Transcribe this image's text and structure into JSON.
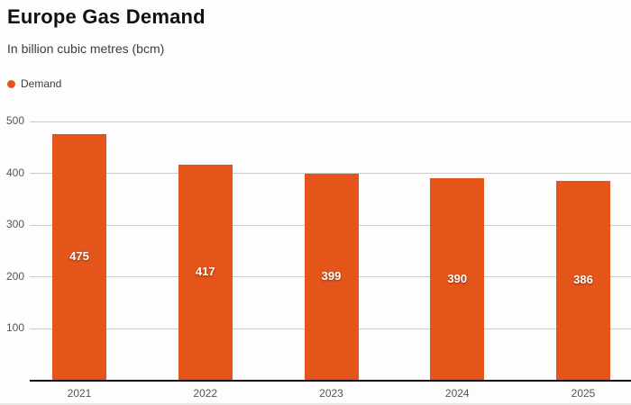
{
  "header": {
    "title": "Europe Gas Demand",
    "subtitle": "In billion cubic metres (bcm)"
  },
  "legend": {
    "items": [
      {
        "label": "Demand",
        "color": "#e4551a"
      }
    ]
  },
  "chart_data": {
    "type": "bar",
    "categories": [
      "2021",
      "2022",
      "2023",
      "2024",
      "2025"
    ],
    "series": [
      {
        "name": "Demand",
        "values": [
          475,
          417,
          399,
          390,
          386
        ]
      }
    ],
    "value_labels": [
      "475",
      "417",
      "399",
      "390",
      "386"
    ],
    "title": "Europe Gas Demand",
    "subtitle": "In billion cubic metres (bcm)",
    "xlabel": "",
    "ylabel": "",
    "ylim": [
      0,
      500
    ],
    "yticks": [
      100,
      200,
      300,
      400,
      500
    ],
    "grid": true,
    "legend_position": "top-left"
  },
  "colors": {
    "bar": "#e4551a",
    "grid": "#cccccc",
    "axis": "#111111",
    "tick_text": "#555555",
    "background": "#fdfdfd"
  }
}
